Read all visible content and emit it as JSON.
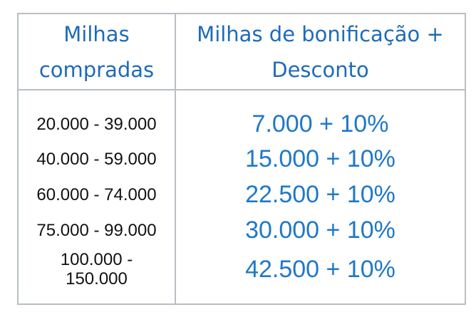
{
  "header": {
    "col1_line1": "Milhas",
    "col1_line2": "compradas",
    "col2_line1": "Milhas de bonificação +",
    "col2_line2": "Desconto"
  },
  "rows": [
    {
      "range": "20.000 - 39.000",
      "bonus": "7.000 + 10%"
    },
    {
      "range": "40.000 - 59.000",
      "bonus": "15.000 + 10%"
    },
    {
      "range": "60.000 - 74.000",
      "bonus": "22.500 + 10%"
    },
    {
      "range": "75.000 - 99.000",
      "bonus": "30.000 + 10%"
    },
    {
      "range_line1": "100.000 -",
      "range_line2": "150.000",
      "bonus": "42.500 + 10%"
    }
  ]
}
